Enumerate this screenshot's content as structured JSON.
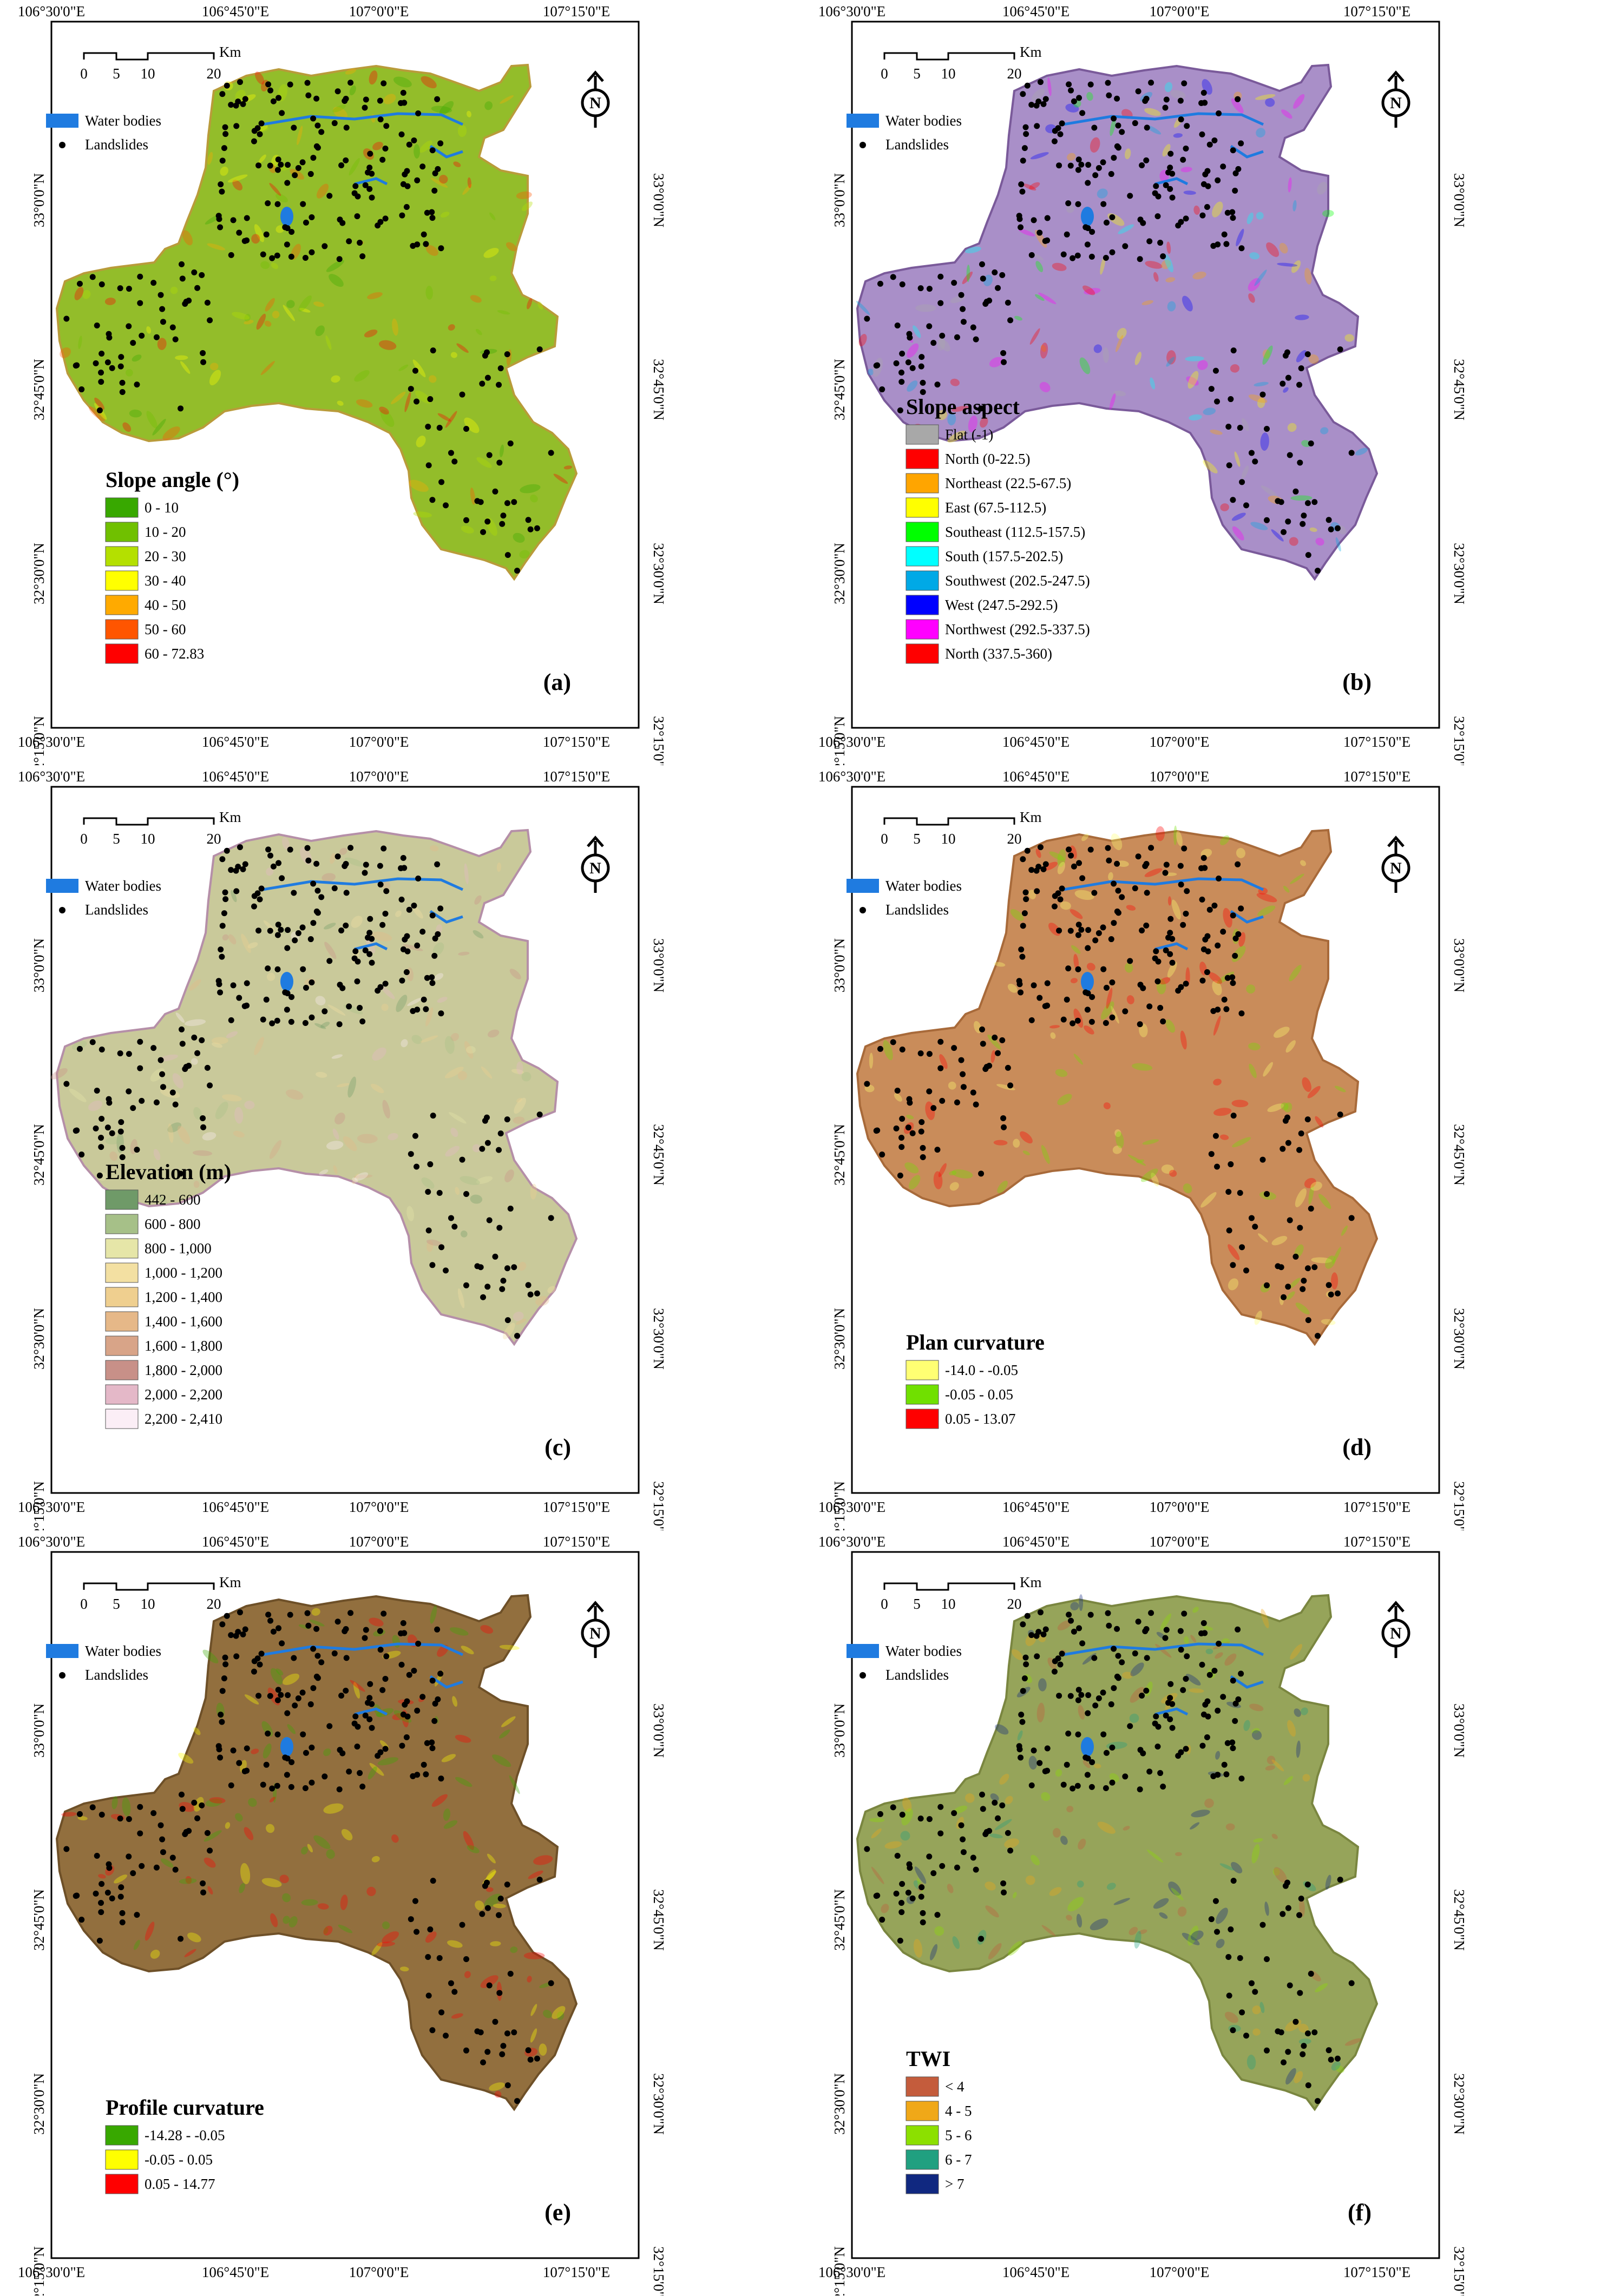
{
  "common": {
    "top_ticks": [
      "106°30'0\"E",
      "106°45'0\"E",
      "107°0'0\"E",
      "107°15'0\"E"
    ],
    "lat_ticks": [
      "33°0'0\"N",
      "32°45'0\"N",
      "32°30'0\"N",
      "32°15'0\"N"
    ],
    "scale_unit": "Km",
    "scale_numbers": [
      "0",
      "5",
      "10",
      "20"
    ],
    "north_letter": "N",
    "water_label": "Water bodies",
    "landslide_label": "Landslides",
    "water_color": "#1f7be0"
  },
  "panels": [
    {
      "id": "a",
      "label": "(a)",
      "legend_title": "Slope angle (°)",
      "classes": [
        {
          "label": "0 - 10",
          "color": "#38a800"
        },
        {
          "label": "10 - 20",
          "color": "#70c000"
        },
        {
          "label": "20 - 30",
          "color": "#b4e000"
        },
        {
          "label": "30 - 40",
          "color": "#ffff00"
        },
        {
          "label": "40 - 50",
          "color": "#ffaa00"
        },
        {
          "label": "50 - 60",
          "color": "#ff5500"
        },
        {
          "label": "60 - 72.83",
          "color": "#ff0000"
        }
      ],
      "fill": "#93bd2a",
      "stroke": "#b99b3a"
    },
    {
      "id": "b",
      "label": "(b)",
      "legend_title": "Slope aspect",
      "classes": [
        {
          "label": "Flat (-1)",
          "color": "#a8a8a8"
        },
        {
          "label": "North (0-22.5)",
          "color": "#ff0000"
        },
        {
          "label": "Northeast (22.5-67.5)",
          "color": "#ffa500"
        },
        {
          "label": "East (67.5-112.5)",
          "color": "#ffff00"
        },
        {
          "label": "Southeast (112.5-157.5)",
          "color": "#00ff00"
        },
        {
          "label": "South (157.5-202.5)",
          "color": "#00ffff"
        },
        {
          "label": "Southwest (202.5-247.5)",
          "color": "#00a9e6"
        },
        {
          "label": "West (247.5-292.5)",
          "color": "#0000ff"
        },
        {
          "label": "Northwest (292.5-337.5)",
          "color": "#ff00ff"
        },
        {
          "label": "North (337.5-360)",
          "color": "#ff0000"
        }
      ],
      "fill": "#a98fc8",
      "stroke": "#7a5a9a"
    },
    {
      "id": "c",
      "label": "(c)",
      "legend_title": "Elevation (m)",
      "classes": [
        {
          "label": "442 - 600",
          "color": "#6f9a68"
        },
        {
          "label": "600 - 800",
          "color": "#a6c088"
        },
        {
          "label": "800 - 1,000",
          "color": "#e6e6a8"
        },
        {
          "label": "1,000 - 1,200",
          "color": "#f3e0a2"
        },
        {
          "label": "1,200 - 1,400",
          "color": "#efcf8f"
        },
        {
          "label": "1,400 - 1,600",
          "color": "#e6b888"
        },
        {
          "label": "1,600 - 1,800",
          "color": "#d8a488"
        },
        {
          "label": "1,800 - 2,000",
          "color": "#c89088"
        },
        {
          "label": "2,000 - 2,200",
          "color": "#e4b8c8"
        },
        {
          "label": "2,200 - 2,410",
          "color": "#fbeef6"
        }
      ],
      "fill": "#c9c99a",
      "stroke": "#b58fa8"
    },
    {
      "id": "d",
      "label": "(d)",
      "legend_title": "Plan curvature",
      "classes": [
        {
          "label": "-14.0 - -0.05",
          "color": "#ffff73"
        },
        {
          "label": "-0.05 - 0.05",
          "color": "#70e000"
        },
        {
          "label": "0.05 - 13.07",
          "color": "#ff0000"
        }
      ],
      "fill": "#c98c5a",
      "stroke": "#a86a3a"
    },
    {
      "id": "e",
      "label": "(e)",
      "legend_title": "Profile curvature",
      "classes": [
        {
          "label": "-14.28 - -0.05",
          "color": "#38a800"
        },
        {
          "label": "-0.05 - 0.05",
          "color": "#ffff00"
        },
        {
          "label": "0.05 - 14.77",
          "color": "#ff0000"
        }
      ],
      "fill": "#926f3e",
      "stroke": "#6e5028"
    },
    {
      "id": "f",
      "label": "(f)",
      "legend_title": "TWI",
      "classes": [
        {
          "label": "< 4",
          "color": "#c45c3c"
        },
        {
          "label": "4 - 5",
          "color": "#f0a818"
        },
        {
          "label": "5 - 6",
          "color": "#8ce000"
        },
        {
          "label": "6 - 7",
          "color": "#20a080"
        },
        {
          "label": "> 7",
          "color": "#102880"
        }
      ],
      "fill": "#96a45a",
      "stroke": "#7a8640"
    }
  ]
}
